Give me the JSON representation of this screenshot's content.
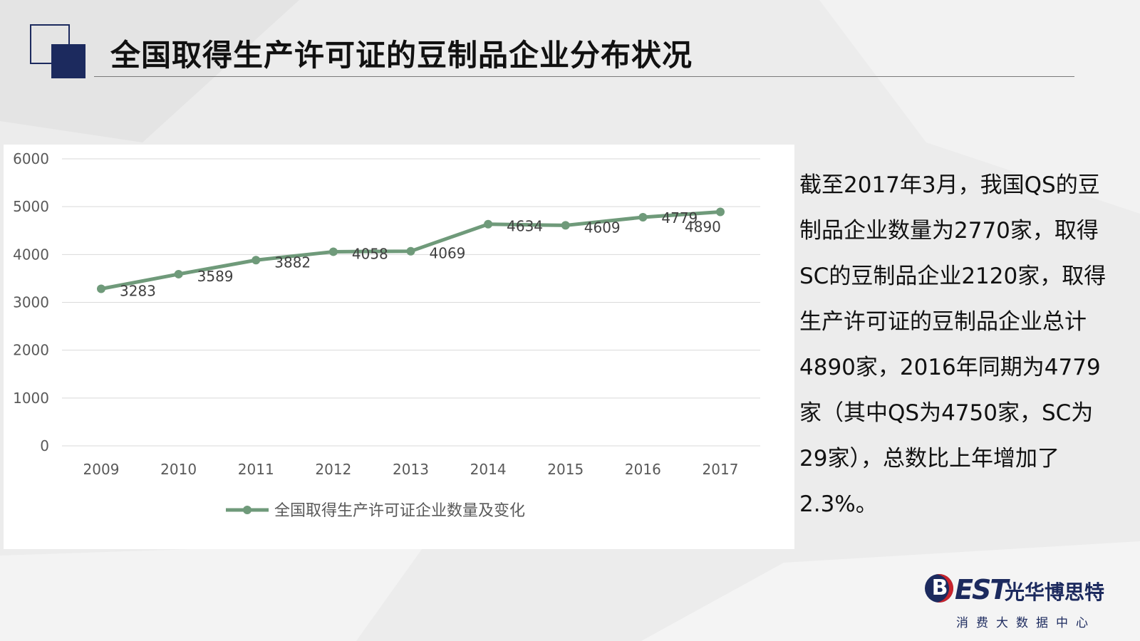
{
  "slide": {
    "title": "全国取得生产许可证的豆制品企业分布状况",
    "side_text": "截至2017年3月，我国QS的豆制品企业数量为2770家，取得SC的豆制品企业2120家，取得生产许可证的豆制品企业总计4890家，2016年同期为4779家（其中QS为4750家，SC为29家），总数比上年增加了2.3%。",
    "accent_color": "#1c2a5e",
    "logo": {
      "mark": "EST",
      "mark_initial": "B",
      "name": "光华博思特",
      "tagline": "消费大数据中心"
    }
  },
  "chart_data": {
    "type": "line",
    "categories": [
      "2009",
      "2010",
      "2011",
      "2012",
      "2013",
      "2014",
      "2015",
      "2016",
      "2017"
    ],
    "series": [
      {
        "name": "全国取得生产许可证企业数量及变化",
        "values": [
          3283,
          3589,
          3882,
          4058,
          4069,
          4634,
          4609,
          4779,
          4890
        ],
        "color": "#6f9a7a"
      }
    ],
    "data_labels": [
      "3283",
      "3589",
      "3882",
      "4058",
      "4069",
      "4634",
      "4609",
      "4779",
      "4890"
    ],
    "ylim": [
      0,
      6000
    ],
    "yticks": [
      "0",
      "1000",
      "2000",
      "3000",
      "4000",
      "5000",
      "6000"
    ],
    "grid": true,
    "legend_position": "bottom",
    "title": "",
    "xlabel": "",
    "ylabel": ""
  }
}
